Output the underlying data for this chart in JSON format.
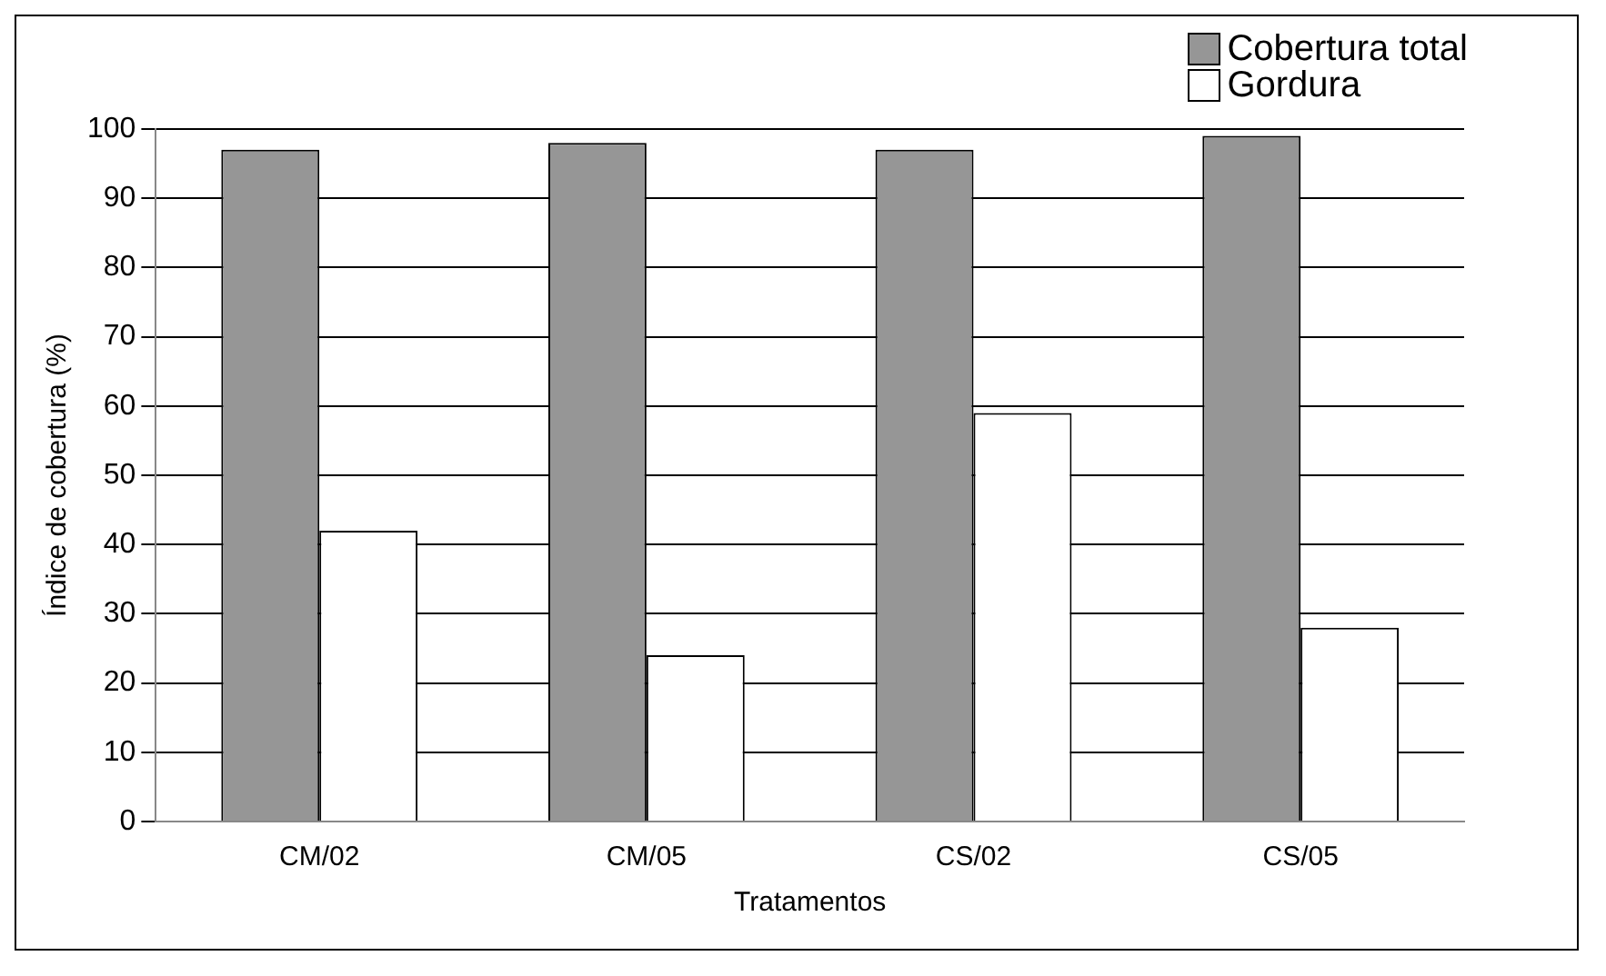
{
  "chart_data": {
    "type": "bar",
    "xlabel": "Tratamentos",
    "ylabel": "Índice de cobertura (%)",
    "categories": [
      "CM/02",
      "CM/05",
      "CS/02",
      "CS/05"
    ],
    "series": [
      {
        "name": "Cobertura total",
        "color": "#969696",
        "values": [
          97,
          98,
          97,
          99
        ]
      },
      {
        "name": "Gordura",
        "color": "#ffffff",
        "values": [
          42,
          24,
          59,
          28
        ]
      }
    ],
    "ylim": [
      0,
      100
    ],
    "yticks": [
      0,
      10,
      20,
      30,
      40,
      50,
      60,
      70,
      80,
      90,
      100
    ],
    "grid": "y",
    "legend": "top right"
  }
}
